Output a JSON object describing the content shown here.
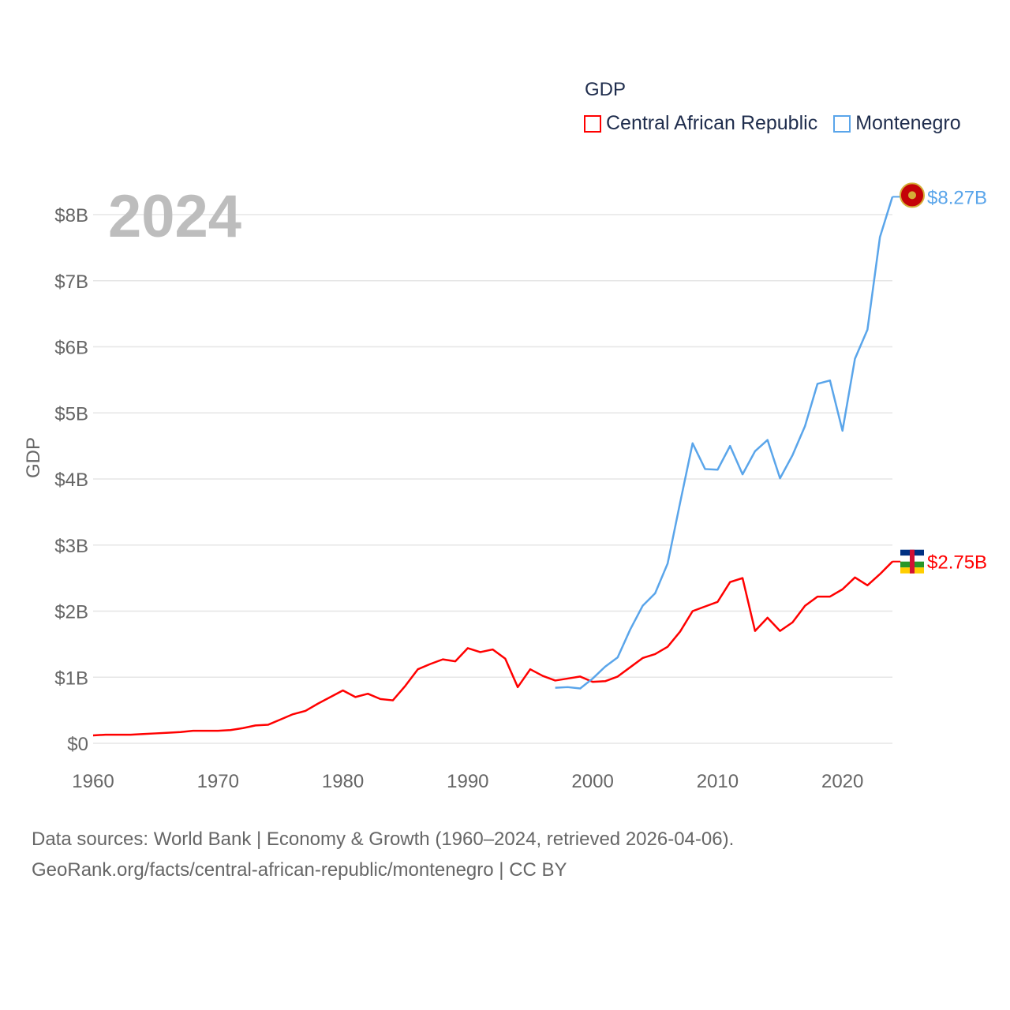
{
  "chart_data": {
    "type": "line",
    "title": "",
    "year_label": "2024",
    "ylabel": "GDP",
    "xlabel": "",
    "xlim": [
      1960,
      2024
    ],
    "ylim": [
      0,
      8.27
    ],
    "grid": true,
    "legend_title": "GDP",
    "legend_position": "top-right",
    "x_ticks": [
      "1960",
      "1970",
      "1980",
      "1990",
      "2000",
      "2010",
      "2020"
    ],
    "y_ticks": [
      {
        "v": 0,
        "label": "$0"
      },
      {
        "v": 1,
        "label": "$1B"
      },
      {
        "v": 2,
        "label": "$2B"
      },
      {
        "v": 3,
        "label": "$3B"
      },
      {
        "v": 4,
        "label": "$4B"
      },
      {
        "v": 5,
        "label": "$5B"
      },
      {
        "v": 6,
        "label": "$6B"
      },
      {
        "v": 7,
        "label": "$7B"
      },
      {
        "v": 8,
        "label": "$8B"
      }
    ],
    "series": [
      {
        "name": "Central African Republic",
        "color": "#ff0000",
        "end_label": "$2.75B",
        "start_year": 1960,
        "values": [
          0.12,
          0.13,
          0.13,
          0.13,
          0.14,
          0.15,
          0.16,
          0.17,
          0.19,
          0.19,
          0.19,
          0.2,
          0.23,
          0.27,
          0.28,
          0.36,
          0.44,
          0.49,
          0.6,
          0.7,
          0.8,
          0.7,
          0.75,
          0.67,
          0.65,
          0.87,
          1.12,
          1.2,
          1.27,
          1.24,
          1.44,
          1.38,
          1.42,
          1.28,
          0.85,
          1.12,
          1.02,
          0.95,
          0.98,
          1.01,
          0.93,
          0.94,
          1.01,
          1.15,
          1.29,
          1.35,
          1.46,
          1.69,
          2.0,
          2.07,
          2.14,
          2.44,
          2.5,
          1.7,
          1.9,
          1.7,
          1.83,
          2.08,
          2.22,
          2.22,
          2.33,
          2.51,
          2.39,
          2.56,
          2.75
        ]
      },
      {
        "name": "Montenegro",
        "color": "#5aa5ea",
        "end_label": "$8.27B",
        "start_year": 1997,
        "values": [
          0.84,
          0.85,
          0.83,
          0.98,
          1.16,
          1.3,
          1.72,
          2.08,
          2.27,
          2.72,
          3.64,
          4.54,
          4.15,
          4.14,
          4.5,
          4.07,
          4.42,
          4.59,
          4.01,
          4.36,
          4.8,
          5.44,
          5.49,
          4.73,
          5.82,
          6.26,
          7.66,
          8.27
        ]
      }
    ]
  },
  "footer": {
    "line1": "Data sources: World Bank | Economy & Growth (1960–2024, retrieved 2026-04-06).",
    "line2": "GeoRank.org/facts/central-african-republic/montenegro | CC BY"
  }
}
